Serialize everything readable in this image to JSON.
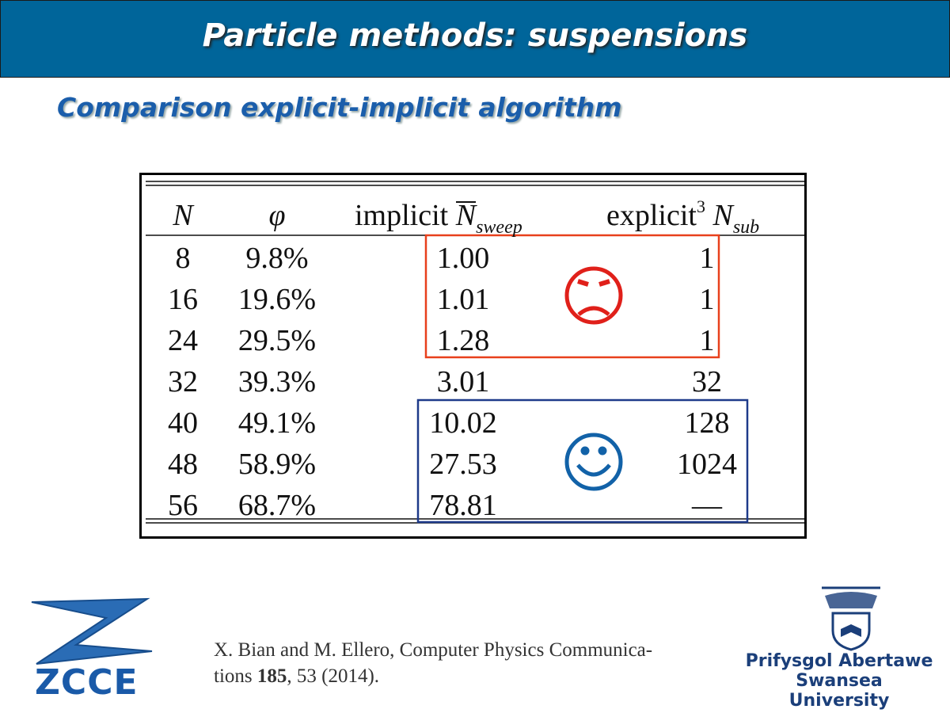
{
  "header": {
    "title": "Particle methods: suspensions",
    "subtitle": "Comparison explicit-implicit algorithm"
  },
  "table": {
    "headers": [
      {
        "symbol": "N"
      },
      {
        "symbol": "φ"
      },
      {
        "text": "implicit",
        "symbol": "N",
        "sub": "sweep"
      },
      {
        "text": "explicit",
        "sup": "3",
        "symbol": "N",
        "sub": "sub"
      }
    ],
    "rows": [
      [
        "8",
        "9.8%",
        "1.00",
        "1"
      ],
      [
        "16",
        "19.6%",
        "1.01",
        "1"
      ],
      [
        "24",
        "29.5%",
        "1.28",
        "1"
      ],
      [
        "32",
        "39.3%",
        "3.01",
        "32"
      ],
      [
        "40",
        "49.1%",
        "10.02",
        "128"
      ],
      [
        "48",
        "58.9%",
        "27.53",
        "1024"
      ],
      [
        "56",
        "68.7%",
        "78.81",
        "—"
      ]
    ]
  },
  "citation": {
    "line1": "X. Bian and M. Ellero, Computer Physics Communica-",
    "line2_start": "tions ",
    "volume": "185",
    "line2_end": ", 53 (2014)."
  },
  "logos": {
    "left": "ZCCE",
    "right_line1": "Prifysgol Abertawe",
    "right_line2": "Swansea University"
  }
}
